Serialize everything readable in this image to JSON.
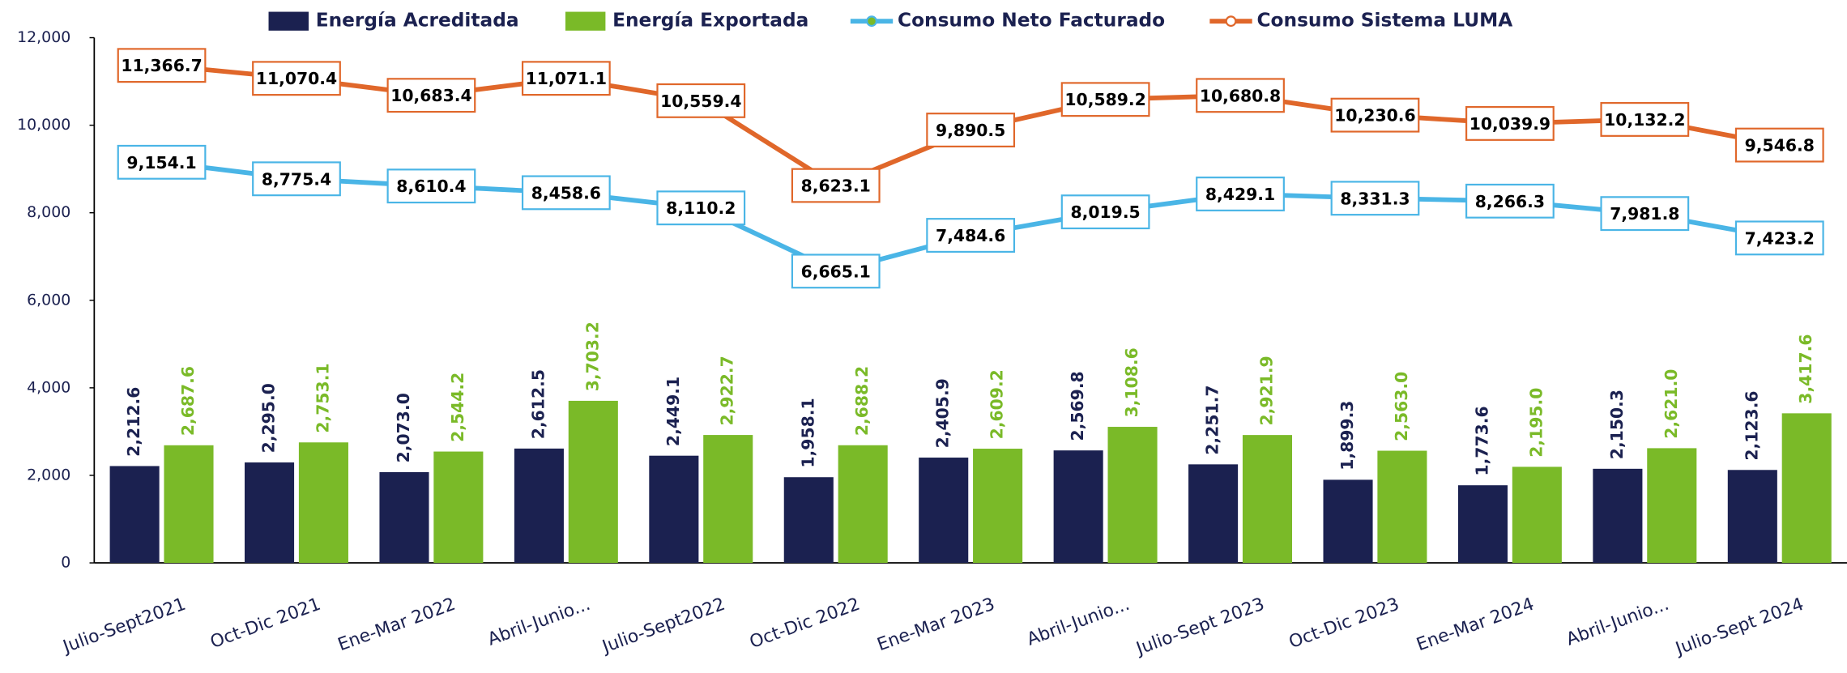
{
  "chart_data": {
    "type": "bar_line",
    "categories": [
      "Julio-Sept2021",
      "Oct-Dic 2021",
      "Ene-Mar 2022",
      "Abril-Junio...",
      "Julio-Sept2022",
      "Oct-Dic 2022",
      "Ene-Mar 2023",
      "Abril-Junio...",
      "Julio-Sept 2023",
      "Oct-Dic 2023",
      "Ene-Mar 2024",
      "Abril-Junio...",
      "Julio-Sept 2024"
    ],
    "ylim": [
      0,
      12000
    ],
    "yticks": [
      0,
      {
        "value": 2000,
        "label": "2,000"
      },
      {
        "value": 4000,
        "label": "4,000"
      },
      {
        "value": 6000,
        "label": "6,000"
      },
      {
        "value": 8000,
        "label": "8,000"
      },
      {
        "value": 10000,
        "label": "10,000"
      },
      {
        "value": 12000,
        "label": "12,000"
      }
    ],
    "series": [
      {
        "name": "Energía Acreditada",
        "kind": "bar",
        "color": "#1b2150",
        "values": [
          2212.6,
          2295.0,
          2073.0,
          2612.5,
          2449.1,
          1958.1,
          2405.9,
          2569.8,
          2251.7,
          1899.3,
          1773.6,
          2150.3,
          2123.6
        ],
        "value_labels": [
          "2,212.6",
          "2,295.0",
          "2,073.0",
          "2,612.5",
          "2,449.1",
          "1,958.1",
          "2,405.9",
          "2,569.8",
          "2,251.7",
          "1,899.3",
          "1,773.6",
          "2,150.3",
          "2,123.6"
        ]
      },
      {
        "name": "Energía Exportada",
        "kind": "bar",
        "color": "#7aba28",
        "values": [
          2687.6,
          2753.1,
          2544.2,
          3703.2,
          2922.7,
          2688.2,
          2609.2,
          3108.6,
          2921.9,
          2563.0,
          2195.0,
          2621.0,
          3417.6
        ],
        "value_labels": [
          "2,687.6",
          "2,753.1",
          "2,544.2",
          "3,703.2",
          "2,922.7",
          "2,688.2",
          "2,609.2",
          "3,108.6",
          "2,921.9",
          "2,563.0",
          "2,195.0",
          "2,621.0",
          "3,417.6"
        ]
      },
      {
        "name": "Consumo Neto Facturado",
        "kind": "line",
        "color": "#4ab5e6",
        "marker_color": "#7aba28",
        "values": [
          9154.1,
          8775.4,
          8610.4,
          8458.6,
          8110.2,
          6665.1,
          7484.6,
          8019.5,
          8429.1,
          8331.3,
          8266.3,
          7981.8,
          7423.2
        ],
        "value_labels": [
          "9,154.1",
          "8,775.4",
          "8,610.4",
          "8,458.6",
          "8,110.2",
          "6,665.1",
          "7,484.6",
          "8,019.5",
          "8,429.1",
          "8,331.3",
          "8,266.3",
          "7,981.8",
          "7,423.2"
        ]
      },
      {
        "name": "Consumo Sistema LUMA",
        "kind": "line",
        "color": "#e0672a",
        "marker_color": "#ffffff",
        "values": [
          11366.7,
          11070.4,
          10683.4,
          11071.1,
          10559.4,
          8623.1,
          9890.5,
          10589.2,
          10680.8,
          10230.6,
          10039.9,
          10132.2,
          9546.8
        ],
        "value_labels": [
          "11,366.7",
          "11,070.4",
          "10,683.4",
          "11,071.1",
          "10,559.4",
          "8,623.1",
          "9,890.5",
          "10,589.2",
          "10,680.8",
          "10,230.6",
          "10,039.9",
          "10,132.2",
          "9,546.8"
        ]
      }
    ]
  }
}
